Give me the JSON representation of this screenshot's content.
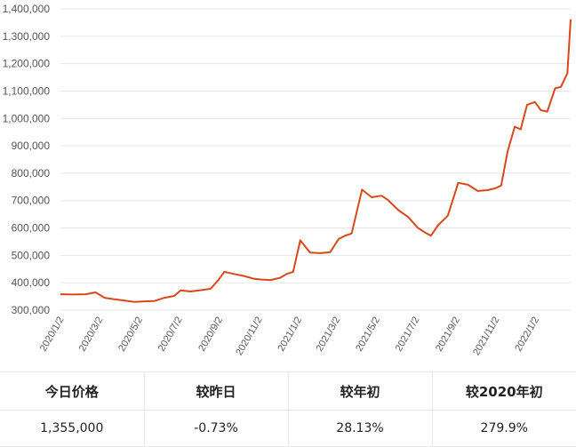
{
  "chart_data": {
    "type": "line",
    "title": "",
    "xlabel": "",
    "ylabel": "",
    "ylim": [
      300000,
      1400000
    ],
    "y_ticks": [
      "300,000",
      "400,000",
      "500,000",
      "600,000",
      "700,000",
      "800,000",
      "900,000",
      "1,000,000",
      "1,100,000",
      "1,200,000",
      "1,300,000",
      "1,400,000"
    ],
    "x_ticks": [
      "2020/1/2",
      "2020/3/2",
      "2020/5/2",
      "2020/7/2",
      "2020/9/2",
      "2020/11/2",
      "2021/1/2",
      "2021/3/2",
      "2021/5/2",
      "2021/7/2",
      "2021/9/2",
      "2021/11/2",
      "2022/1/2"
    ],
    "grid": true,
    "line_color": "#d9481c",
    "series": [
      {
        "x": [
          "2020/1/2",
          "2020/1/20",
          "2020/2/10",
          "2020/2/25",
          "2020/3/10",
          "2020/3/25",
          "2020/4/10",
          "2020/4/25",
          "2020/5/10",
          "2020/5/25",
          "2020/6/10",
          "2020/6/25",
          "2020/7/5",
          "2020/7/20",
          "2020/8/5",
          "2020/8/20",
          "2020/9/1",
          "2020/9/10",
          "2020/9/25",
          "2020/10/10",
          "2020/10/25",
          "2020/11/5",
          "2020/11/20",
          "2020/12/5",
          "2020/12/15",
          "2020/12/25",
          "2021/1/5",
          "2021/1/20",
          "2021/2/5",
          "2021/2/20",
          "2021/3/5",
          "2021/3/15",
          "2021/3/25",
          "2021/4/10",
          "2021/4/25",
          "2021/5/10",
          "2021/5/20",
          "2021/6/5",
          "2021/6/20",
          "2021/7/5",
          "2021/7/15",
          "2021/7/25",
          "2021/8/5",
          "2021/8/20",
          "2021/9/5",
          "2021/9/20",
          "2021/10/5",
          "2021/10/20",
          "2021/11/1",
          "2021/11/10",
          "2021/11/20",
          "2021/12/1",
          "2021/12/10",
          "2021/12/20",
          "2022/1/1",
          "2022/1/10",
          "2022/1/20",
          "2022/2/1",
          "2022/2/10",
          "2022/2/20",
          "2022/2/25"
        ],
        "y": [
          358000,
          357000,
          358000,
          365000,
          345000,
          340000,
          335000,
          330000,
          332000,
          333000,
          345000,
          352000,
          372000,
          368000,
          373000,
          378000,
          410000,
          440000,
          432000,
          425000,
          415000,
          412000,
          410000,
          418000,
          432000,
          440000,
          555000,
          510000,
          508000,
          512000,
          560000,
          572000,
          580000,
          740000,
          712000,
          718000,
          702000,
          665000,
          640000,
          600000,
          585000,
          572000,
          610000,
          645000,
          765000,
          758000,
          735000,
          738000,
          745000,
          755000,
          880000,
          970000,
          960000,
          1050000,
          1060000,
          1030000,
          1025000,
          1110000,
          1115000,
          1165000,
          1362000
        ]
      }
    ]
  },
  "stats": {
    "headers": [
      "今日价格",
      "较昨日",
      "较年初",
      "较2020年初"
    ],
    "values": [
      "1,355,000",
      "-0.73%",
      "28.13%",
      "279.9%"
    ]
  }
}
